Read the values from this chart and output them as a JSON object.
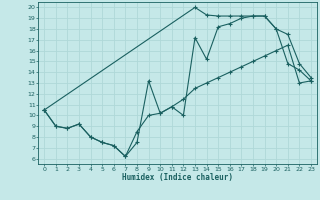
{
  "xlabel": "Humidex (Indice chaleur)",
  "xlim": [
    -0.5,
    23.5
  ],
  "ylim": [
    5.5,
    20.5
  ],
  "xticks": [
    0,
    1,
    2,
    3,
    4,
    5,
    6,
    7,
    8,
    9,
    10,
    11,
    12,
    13,
    14,
    15,
    16,
    17,
    18,
    19,
    20,
    21,
    22,
    23
  ],
  "yticks": [
    6,
    7,
    8,
    9,
    10,
    11,
    12,
    13,
    14,
    15,
    16,
    17,
    18,
    19,
    20
  ],
  "bg_color": "#c5e8e8",
  "grid_color": "#afd8d8",
  "line_color": "#1a6060",
  "line1_x": [
    0,
    1,
    2,
    3,
    4,
    5,
    6,
    7,
    8,
    9,
    10,
    11,
    12,
    13,
    14,
    15,
    16,
    17,
    18,
    19,
    20,
    21,
    22,
    23
  ],
  "line1_y": [
    10.5,
    9.0,
    8.8,
    9.2,
    8.0,
    7.5,
    7.2,
    6.2,
    7.5,
    13.2,
    10.2,
    10.8,
    10.0,
    17.2,
    15.2,
    18.2,
    18.5,
    19.0,
    19.2,
    19.2,
    18.0,
    17.5,
    14.8,
    13.5
  ],
  "line2_x": [
    0,
    1,
    2,
    3,
    4,
    5,
    6,
    7,
    8,
    9,
    10,
    11,
    12,
    13,
    14,
    15,
    16,
    17,
    18,
    19,
    20,
    21,
    22,
    23
  ],
  "line2_y": [
    10.5,
    9.0,
    8.8,
    9.2,
    8.0,
    7.5,
    7.2,
    6.2,
    8.5,
    10.0,
    10.2,
    10.8,
    11.5,
    12.5,
    13.0,
    13.5,
    14.0,
    14.5,
    15.0,
    15.5,
    16.0,
    16.5,
    13.0,
    13.2
  ],
  "line3_x": [
    0,
    13,
    14,
    15,
    16,
    17,
    18,
    19,
    20,
    21,
    22,
    23
  ],
  "line3_y": [
    10.5,
    20.0,
    19.3,
    19.2,
    19.2,
    19.2,
    19.2,
    19.2,
    18.0,
    14.8,
    14.2,
    13.2
  ]
}
